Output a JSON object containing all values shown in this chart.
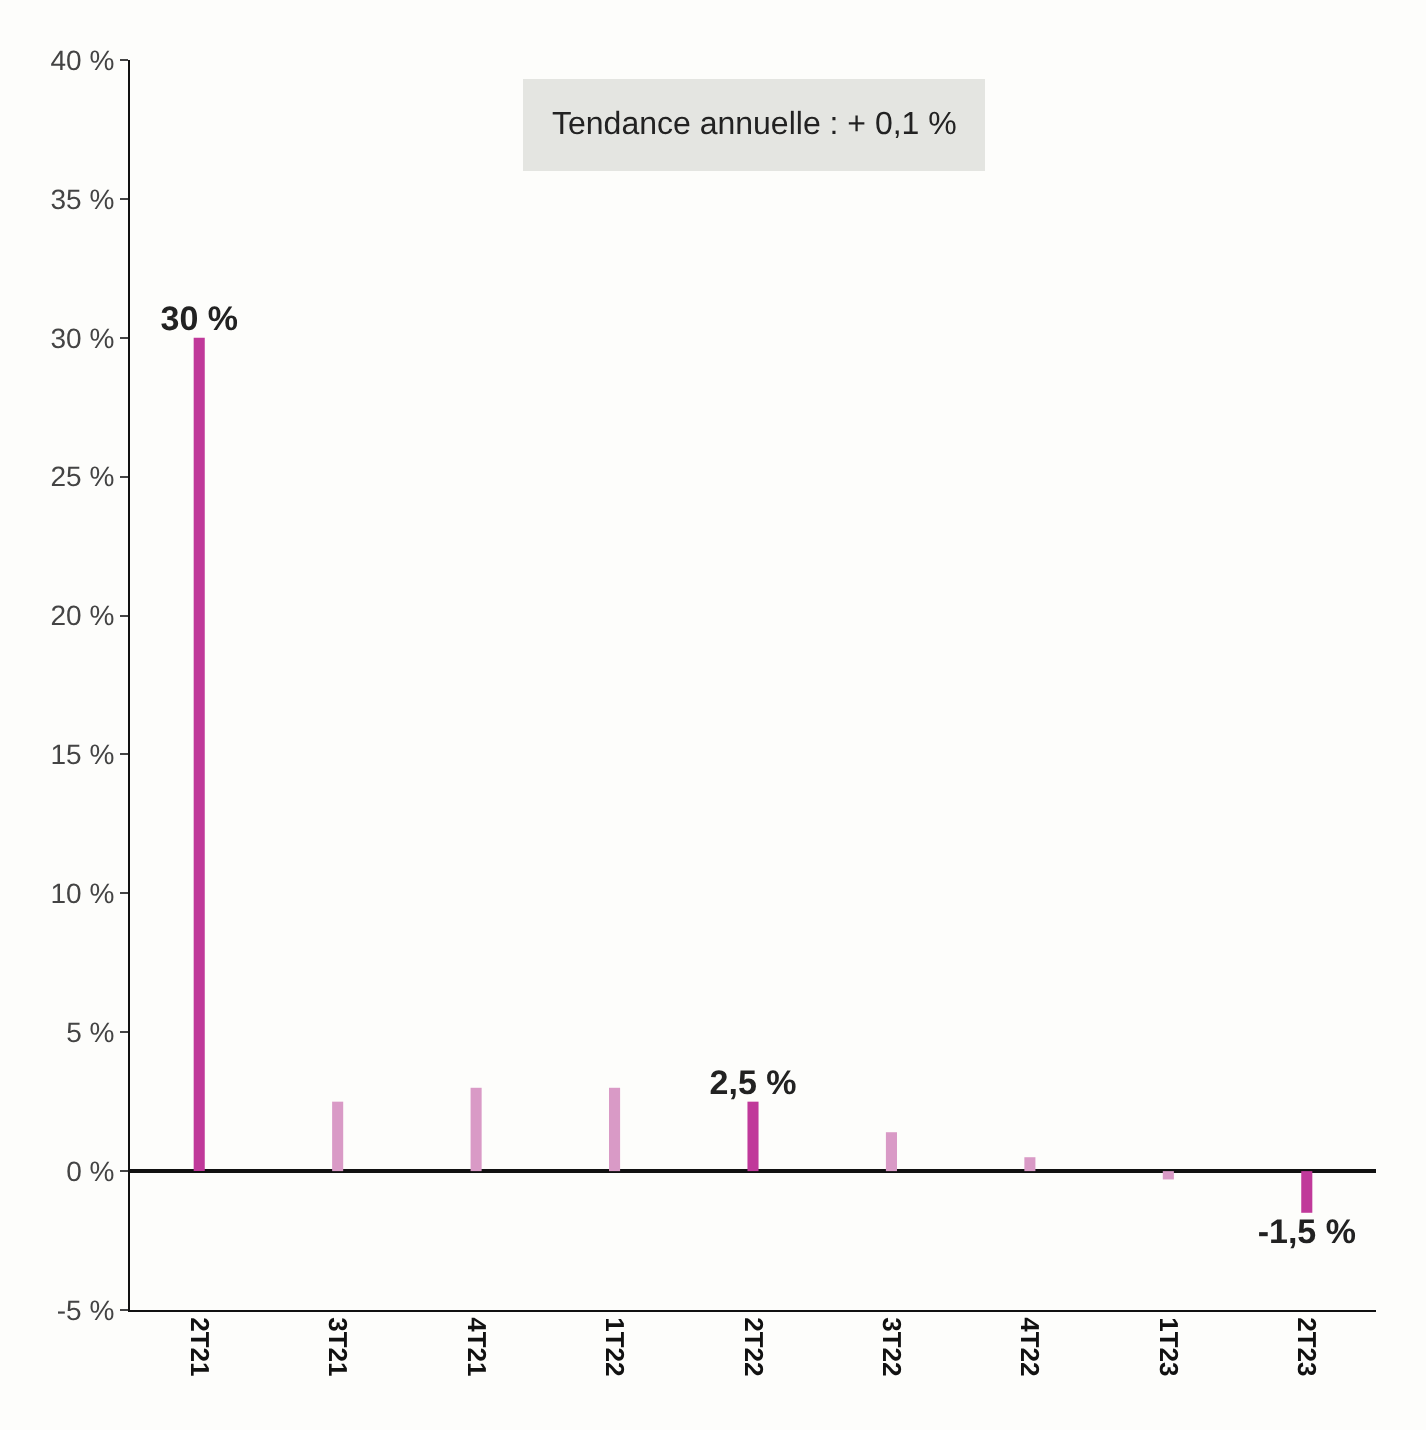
{
  "chart_data": {
    "type": "bar",
    "categories": [
      "2T21",
      "3T21",
      "4T21",
      "1T22",
      "2T22",
      "3T22",
      "4T22",
      "1T23",
      "2T23"
    ],
    "values": [
      30,
      2.5,
      3,
      3,
      2.5,
      1.4,
      0.5,
      -0.3,
      -1.5
    ],
    "colors": [
      "#c0399a",
      "#d99ac6",
      "#d99ac6",
      "#d99ac6",
      "#c0399a",
      "#d99ac6",
      "#d99ac6",
      "#d99ac6",
      "#c0399a"
    ],
    "value_labels": [
      "30 %",
      null,
      null,
      null,
      "2,5 %",
      null,
      null,
      null,
      "-1,5 %"
    ],
    "ylim": [
      -5,
      40
    ],
    "yticks": [
      {
        "value": -5,
        "label": "-5 %"
      },
      {
        "value": 0,
        "label": "0 %"
      },
      {
        "value": 5,
        "label": "5 %"
      },
      {
        "value": 10,
        "label": "10 %"
      },
      {
        "value": 15,
        "label": "15 %"
      },
      {
        "value": 20,
        "label": "20 %"
      },
      {
        "value": 25,
        "label": "25 %"
      },
      {
        "value": 30,
        "label": "30 %"
      },
      {
        "value": 35,
        "label": "35 %"
      },
      {
        "value": 40,
        "label": "40 %"
      }
    ],
    "annotations": [
      "Tendance annuelle : + 0,1 %"
    ],
    "ref_lines": [
      {
        "axis": "y",
        "value": 0,
        "color": "#111111"
      }
    ],
    "grid": false
  }
}
